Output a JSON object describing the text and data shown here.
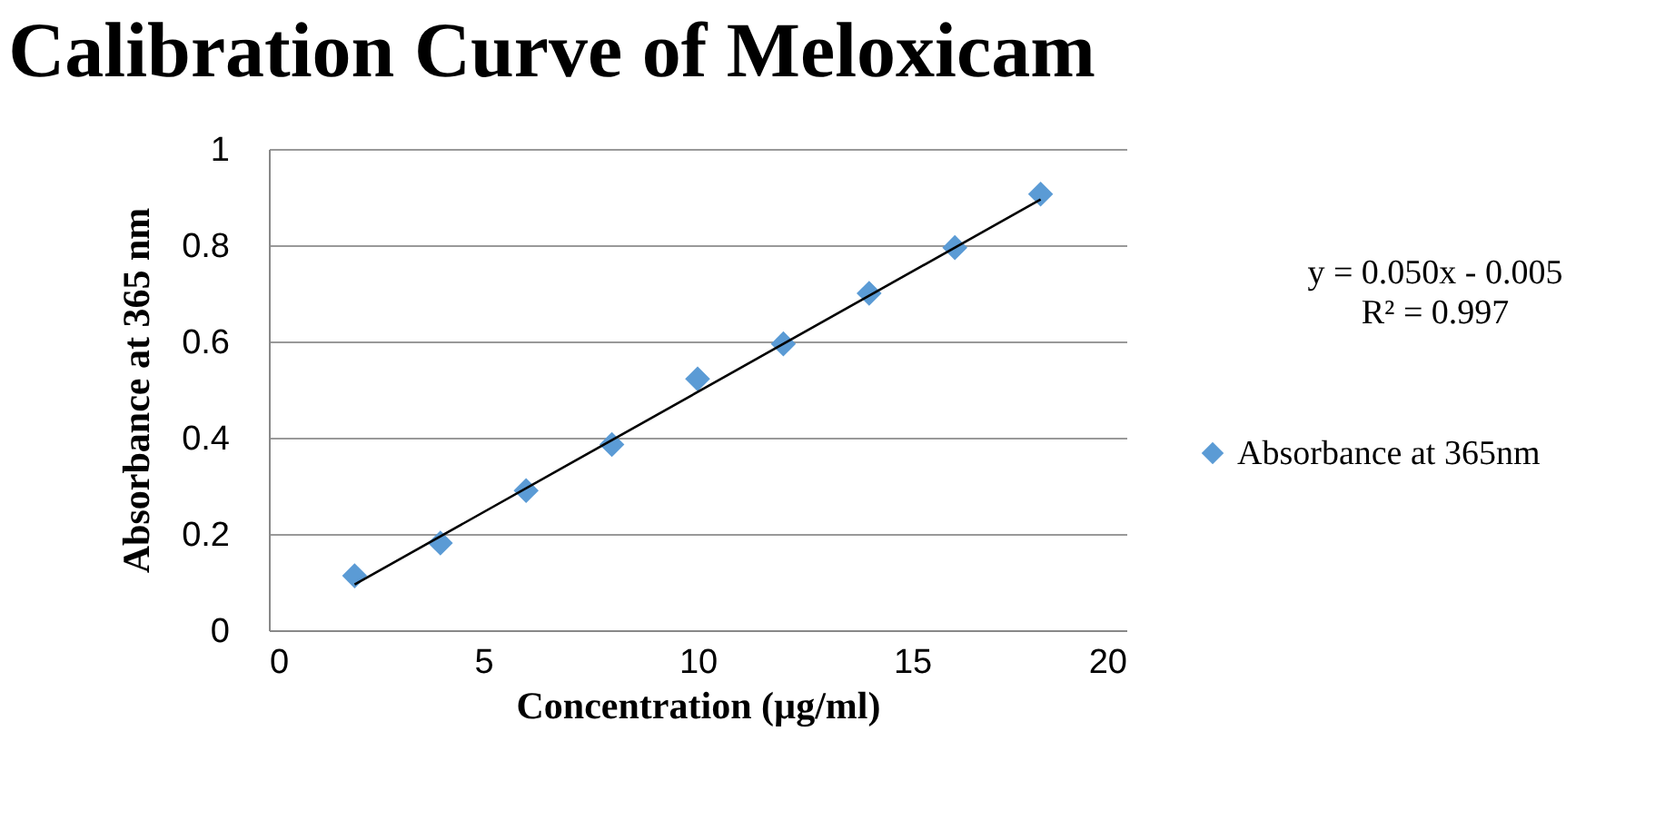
{
  "chart_data": {
    "type": "scatter",
    "title": "Calibration Curve of Meloxicam",
    "xlabel": "Concentration (µg/ml)",
    "ylabel": "Absorbance at 365 nm",
    "x": [
      2,
      4,
      6,
      8,
      10,
      12,
      14,
      16,
      18
    ],
    "series": [
      {
        "name": "Absorbance at 365nm",
        "color": "#5b9bd5",
        "marker": "diamond",
        "values": [
          0.113,
          0.181,
          0.29,
          0.386,
          0.522,
          0.595,
          0.7,
          0.795,
          0.906
        ]
      },
      {
        "type": "line",
        "color": "#000000",
        "marker": "none",
        "x": [
          2,
          18
        ],
        "values": [
          0.095,
          0.895
        ]
      }
    ],
    "annotations": [
      "y = 0.050x - 0.005\nR² = 0.997"
    ],
    "xlim": [
      0,
      20
    ],
    "xticks": [
      0,
      5,
      10,
      15,
      20
    ],
    "ylim": [
      0,
      1
    ],
    "yticks": [
      0,
      0.2,
      0.4,
      0.6,
      0.8,
      1
    ],
    "grid": "y",
    "legend": "right",
    "line_style": "solid"
  }
}
